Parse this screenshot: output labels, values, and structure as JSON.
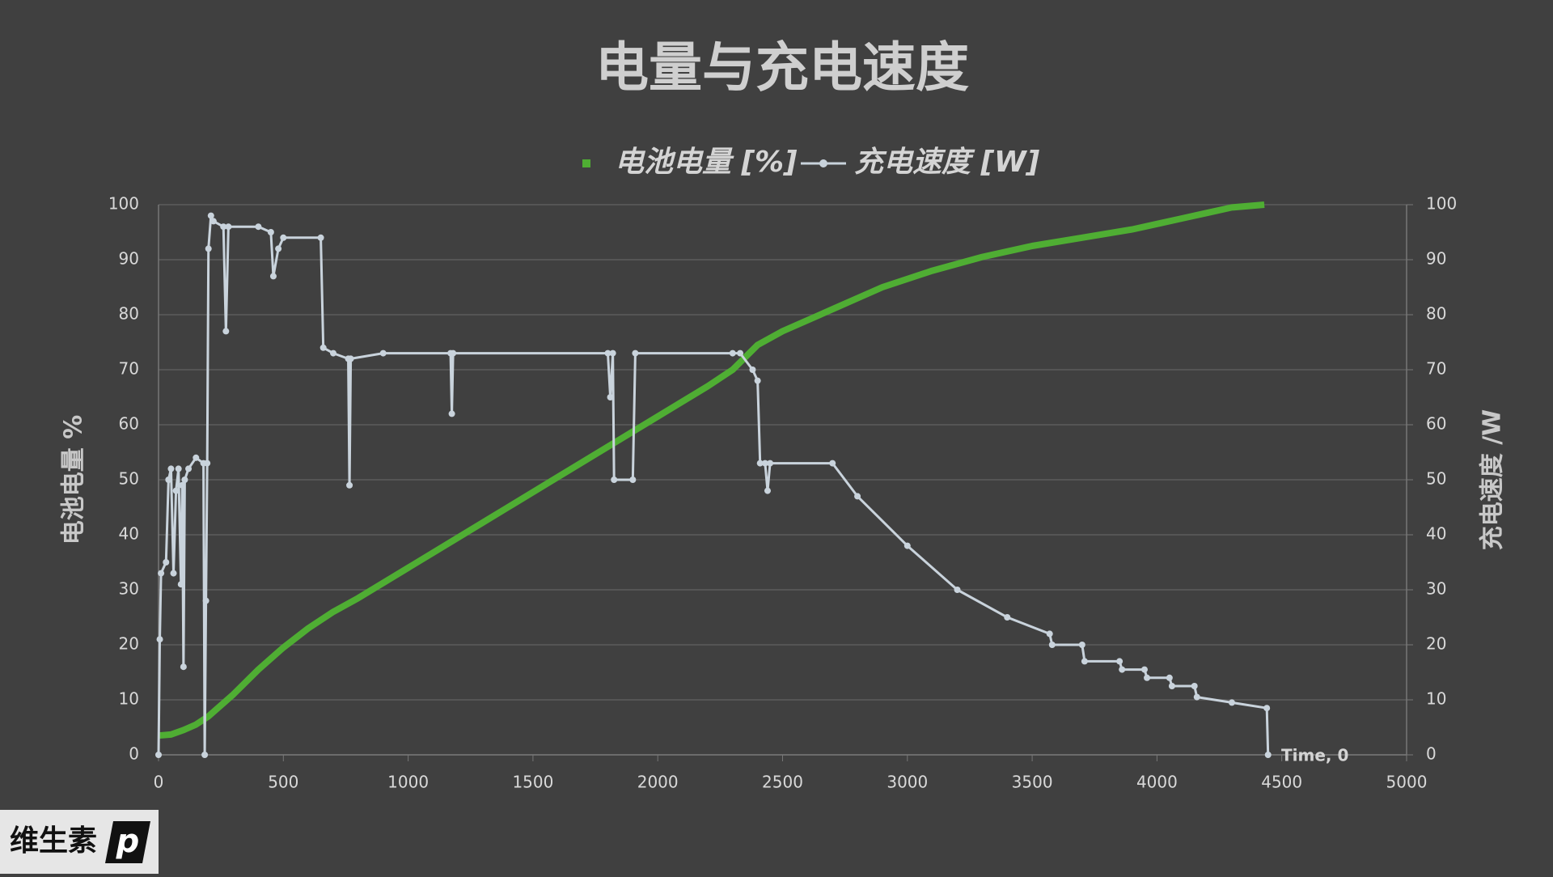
{
  "chart_data": {
    "type": "line",
    "title": "电量与充电速度",
    "y_label": "电池电量 %",
    "y2_label": "充电速度 /W",
    "annotation": "Time, 0",
    "xlim": [
      0,
      5000
    ],
    "xticks": [
      0,
      500,
      1000,
      1500,
      2000,
      2500,
      3000,
      3500,
      4000,
      4500,
      5000
    ],
    "ylim": [
      0,
      100
    ],
    "yticks": [
      0,
      10,
      20,
      30,
      40,
      50,
      60,
      70,
      80,
      90,
      100
    ],
    "y2lim": [
      0,
      100
    ],
    "y2ticks": [
      0,
      10,
      20,
      30,
      40,
      50,
      60,
      70,
      80,
      90,
      100
    ],
    "grid": true,
    "legend": "top",
    "series": [
      {
        "name": "电池电量 [%]",
        "color": "#4fae33",
        "marker": "square",
        "x": [
          0,
          50,
          100,
          150,
          200,
          300,
          400,
          500,
          600,
          700,
          800,
          1000,
          1200,
          1400,
          1600,
          1800,
          2000,
          2200,
          2300,
          2400,
          2500,
          2700,
          2900,
          3100,
          3300,
          3500,
          3700,
          3900,
          4000,
          4100,
          4200,
          4300,
          4430
        ],
        "values": [
          3.5,
          3.7,
          4.5,
          5.5,
          7,
          11,
          15.5,
          19.5,
          23,
          26,
          28.5,
          34,
          39.5,
          45,
          50.5,
          56,
          61.5,
          67,
          70,
          74.5,
          77,
          81,
          85,
          88,
          90.5,
          92.5,
          94,
          95.5,
          96.5,
          97.5,
          98.5,
          99.5,
          100
        ]
      },
      {
        "name": "充电速度 [W]",
        "color": "#c9d3dc",
        "marker": "circle",
        "axis": "y2",
        "x": [
          0,
          5,
          10,
          30,
          40,
          50,
          60,
          70,
          80,
          90,
          95,
          100,
          105,
          120,
          150,
          180,
          185,
          190,
          195,
          200,
          210,
          220,
          260,
          270,
          280,
          400,
          450,
          460,
          480,
          500,
          650,
          660,
          700,
          760,
          765,
          770,
          900,
          1170,
          1175,
          1180,
          1800,
          1810,
          1820,
          1825,
          1900,
          1910,
          2300,
          2330,
          2380,
          2400,
          2410,
          2430,
          2440,
          2450,
          2700,
          2800,
          3000,
          3200,
          3400,
          3570,
          3580,
          3700,
          3710,
          3850,
          3860,
          3950,
          3960,
          4050,
          4060,
          4150,
          4160,
          4300,
          4440,
          4445
        ],
        "values": [
          0,
          21,
          33,
          35,
          50,
          52,
          33,
          48,
          52,
          31,
          49,
          16,
          50,
          52,
          54,
          53,
          0,
          28,
          53,
          92,
          98,
          97,
          96,
          77,
          96,
          96,
          95,
          87,
          92,
          94,
          94,
          74,
          73,
          72,
          49,
          72,
          73,
          73,
          62,
          73,
          73,
          65,
          73,
          50,
          50,
          73,
          73,
          73,
          70,
          68,
          53,
          53,
          48,
          53,
          53,
          47,
          38,
          30,
          25,
          22,
          20,
          20,
          17,
          17,
          15.5,
          15.5,
          14,
          14,
          12.5,
          12.5,
          10.5,
          9.5,
          8.5,
          0
        ]
      }
    ]
  },
  "logo": {
    "text": "维生素",
    "mark": "p"
  }
}
